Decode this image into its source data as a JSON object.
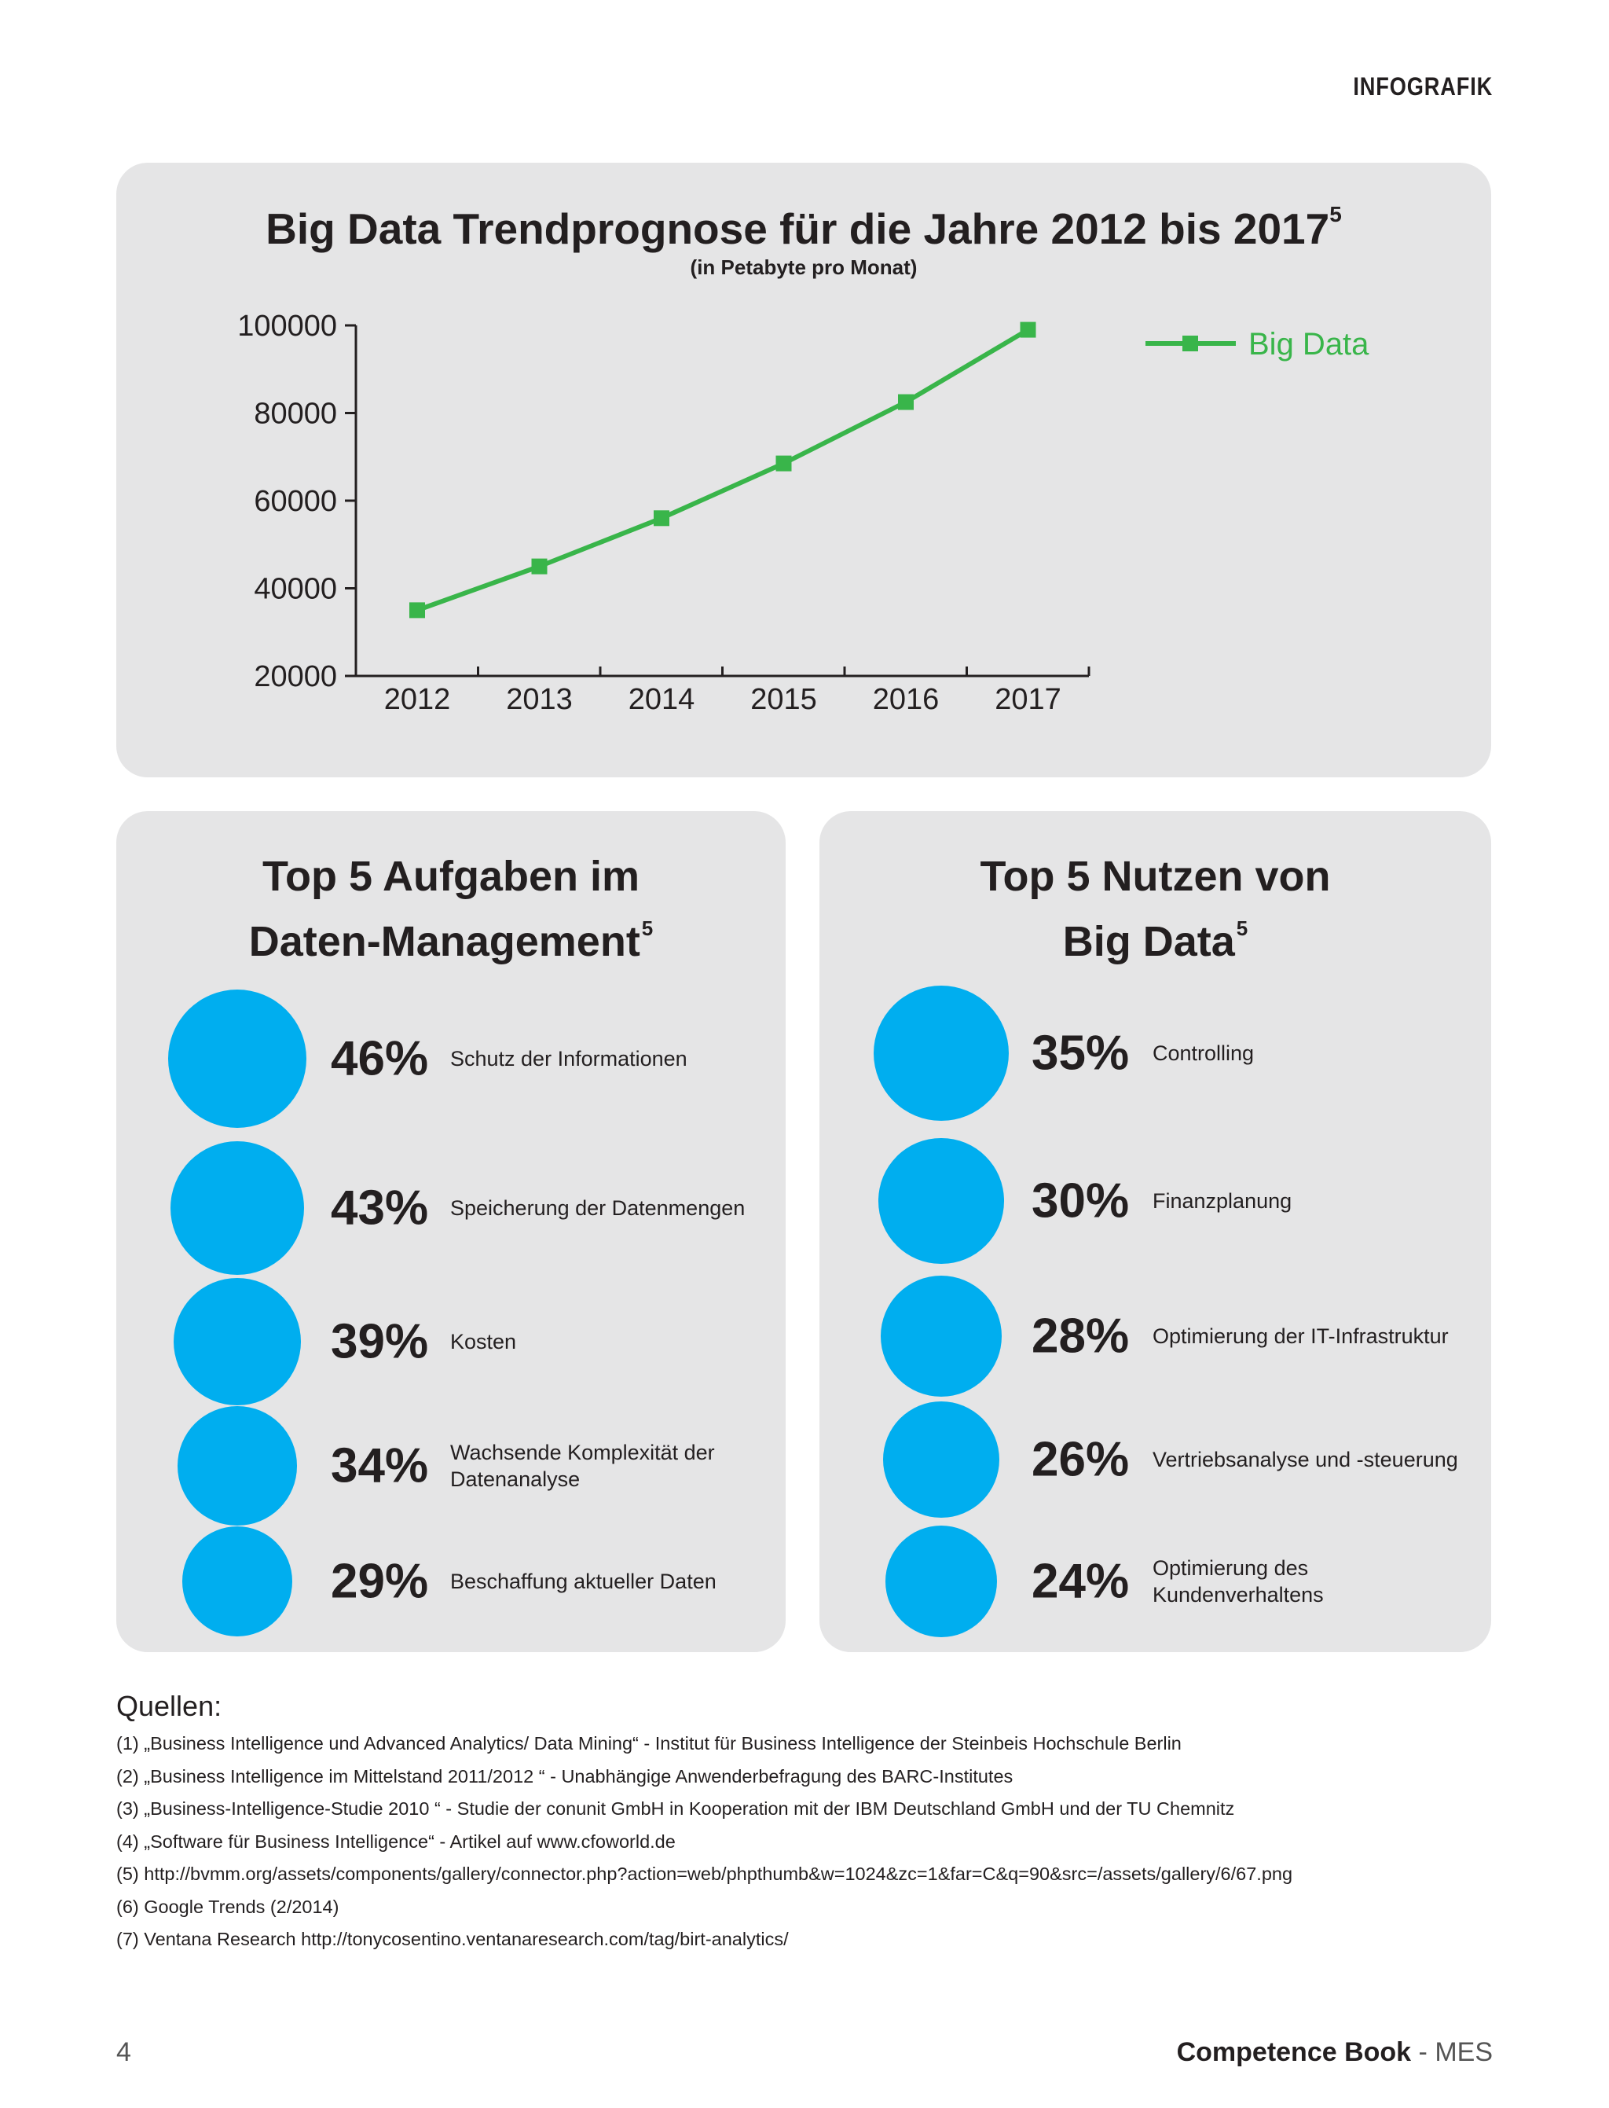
{
  "header": {
    "label": "INFOGRAFIK"
  },
  "trend": {
    "title": "Big Data Trendprognose für die Jahre 2012 bis 2017",
    "title_sup": "5",
    "subtitle": "(in Petabyte pro Monat)"
  },
  "chart_data": {
    "type": "line",
    "title": "Big Data Trendprognose für die Jahre 2012 bis 2017",
    "subtitle": "(in Petabyte pro Monat)",
    "categories": [
      "2012",
      "2013",
      "2014",
      "2015",
      "2016",
      "2017"
    ],
    "series": [
      {
        "name": "Big Data",
        "color": "#39b54a",
        "values": [
          35000,
          45000,
          56000,
          68500,
          82500,
          99000
        ]
      }
    ],
    "yticks": [
      "20000",
      "40000",
      "60000",
      "80000",
      "100000"
    ],
    "ylim": [
      20000,
      100000
    ],
    "legend_position": "top-right"
  },
  "tasks": {
    "title_line1": "Top 5 Aufgaben im",
    "title_line2": "Daten-Management",
    "title_sup": "5",
    "items": [
      {
        "pct": "46%",
        "value": 46,
        "label": "Schutz der Informationen"
      },
      {
        "pct": "43%",
        "value": 43,
        "label": "Speicherung der Datenmengen"
      },
      {
        "pct": "39%",
        "value": 39,
        "label": "Kosten"
      },
      {
        "pct": "34%",
        "value": 34,
        "label": "Wachsende Komplexität der Datenanalyse"
      },
      {
        "pct": "29%",
        "value": 29,
        "label": "Beschaffung aktueller Daten"
      }
    ]
  },
  "benefits": {
    "title_line1": "Top 5 Nutzen von",
    "title_line2": "Big Data",
    "title_sup": "5",
    "items": [
      {
        "pct": "35%",
        "value": 35,
        "label": "Controlling"
      },
      {
        "pct": "30%",
        "value": 30,
        "label": "Finanzplanung"
      },
      {
        "pct": "28%",
        "value": 28,
        "label": "Optimierung der IT-Infrastruktur"
      },
      {
        "pct": "26%",
        "value": 26,
        "label": "Vertriebsanalyse und -steuerung"
      },
      {
        "pct": "24%",
        "value": 24,
        "label": "Optimierung des Kundenverhaltens"
      }
    ]
  },
  "sources": {
    "title": "Quellen:",
    "lines": [
      "(1) „Business Intelligence und Advanced Analytics/ Data Mining“ - Institut für Business Intelligence der Steinbeis Hochschule Berlin",
      "(2) „Business Intelligence im Mittelstand 2011/2012 “ - Unabhängige Anwenderbefragung des BARC-Institutes",
      "(3) „Business-Intelligence-Studie 2010 “ - Studie der conunit GmbH in Kooperation mit der IBM Deutschland GmbH und der TU Chemnitz",
      "(4) „Software für Business Intelligence“ - Artikel auf www.cfoworld.de",
      "(5) http://bvmm.org/assets/components/gallery/connector.php?action=web/phpthumb&w=1024&zc=1&far=C&q=90&src=/assets/gallery/6/67.png",
      "(6) Google Trends (2/2014)",
      "(7) Ventana Research http://tonycosentino.ventanaresearch.com/tag/birt-analytics/"
    ]
  },
  "footer": {
    "page_number": "4",
    "book_bold": "Competence Book",
    "book_sep": " - ",
    "book_rest": "MES"
  },
  "colors": {
    "accent_green": "#39b54a",
    "bubble_blue": "#00aeef",
    "panel_bg": "#e5e5e6"
  }
}
